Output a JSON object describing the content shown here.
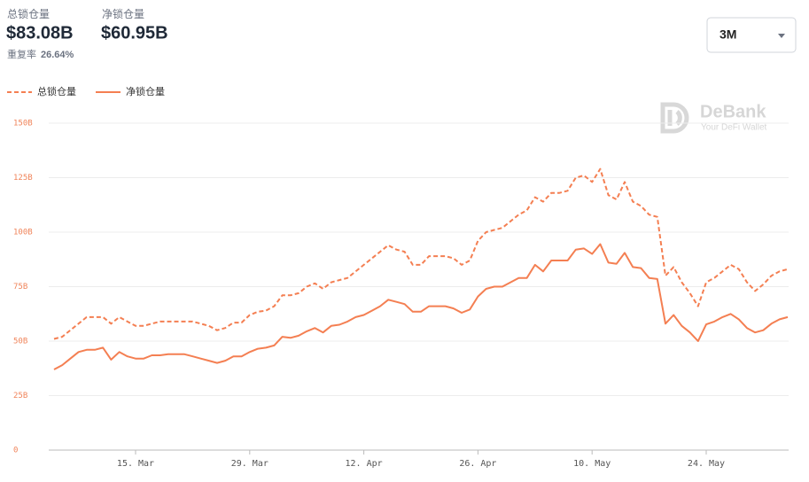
{
  "header": {
    "total_label": "总锁仓量",
    "total_value": "$83.08B",
    "net_label": "净锁仓量",
    "net_value": "$60.95B",
    "ratio_label": "重复率",
    "ratio_value": "26.64%"
  },
  "dropdown": "3M",
  "watermark": {
    "brand": "DeBank",
    "tagline": "Your DeFi Wallet"
  },
  "chart_data": {
    "type": "line",
    "categories": [
      null,
      null,
      null,
      null,
      null,
      null,
      null,
      null,
      null,
      null,
      "15. Mar",
      null,
      null,
      null,
      null,
      null,
      null,
      null,
      null,
      null,
      null,
      null,
      null,
      null,
      "29. Mar",
      null,
      null,
      null,
      null,
      null,
      null,
      null,
      null,
      null,
      null,
      null,
      null,
      null,
      "12. Apr",
      null,
      null,
      null,
      null,
      null,
      null,
      null,
      null,
      null,
      null,
      null,
      null,
      null,
      "26. Apr",
      null,
      null,
      null,
      null,
      null,
      null,
      null,
      null,
      null,
      null,
      null,
      null,
      null,
      "10. May",
      null,
      null,
      null,
      null,
      null,
      null,
      null,
      null,
      null,
      null,
      null,
      null,
      null,
      "24. May",
      null,
      null,
      null,
      null,
      null,
      null,
      null,
      null,
      null,
      null
    ],
    "series": [
      {
        "name": "总锁仓量",
        "color": "#f47f52",
        "line_style": "dashed",
        "values": [
          51,
          52,
          55,
          58,
          61,
          61,
          61,
          58,
          61,
          59,
          57,
          57,
          58,
          59,
          59,
          59,
          59,
          59,
          58,
          57,
          55,
          56,
          58.5,
          58.5,
          62,
          63.5,
          64,
          66,
          71,
          71,
          72,
          75,
          76.5,
          74,
          77,
          78,
          79,
          82,
          85,
          88,
          91,
          94,
          92,
          91,
          85,
          85,
          89,
          89,
          89,
          88,
          85,
          87,
          96,
          100,
          101,
          102,
          105,
          108,
          110,
          116,
          114,
          118,
          118,
          119,
          125,
          126,
          123,
          129,
          117,
          115,
          123,
          114,
          112,
          108,
          107,
          80,
          84,
          77,
          72,
          66,
          77,
          79,
          82,
          85,
          83,
          77,
          73,
          76,
          80,
          82,
          83
        ]
      },
      {
        "name": "净锁仓量",
        "color": "#f47f52",
        "line_style": "solid",
        "values": [
          37,
          39,
          42,
          45,
          46,
          46,
          47,
          41.5,
          45,
          43,
          42,
          42,
          43.5,
          43.5,
          44,
          44,
          44,
          43,
          42,
          41,
          40,
          41,
          43,
          43,
          45,
          46.5,
          47,
          48,
          52,
          51.5,
          52.5,
          54.5,
          56,
          54,
          57,
          57.5,
          59,
          61,
          62,
          64,
          66,
          69,
          68,
          67,
          63.5,
          63.5,
          66,
          66,
          66,
          65,
          63,
          64.5,
          70.5,
          74,
          75,
          75,
          77,
          79,
          79,
          85,
          82,
          87,
          87,
          87,
          92,
          92.5,
          90,
          94.5,
          86,
          85.5,
          90.5,
          84,
          83.5,
          79,
          78.5,
          58,
          62,
          57,
          54,
          50,
          57.7,
          59,
          61,
          62.5,
          60,
          56,
          54,
          55,
          58,
          60,
          61
        ]
      }
    ],
    "ylim": [
      0,
      150
    ],
    "yticks": [
      0,
      {
        "value": 25,
        "label": "25B"
      },
      {
        "value": 50,
        "label": "50B"
      },
      {
        "value": 75,
        "label": "75B"
      },
      {
        "value": 100,
        "label": "100B"
      },
      {
        "value": 125,
        "label": "125B"
      },
      {
        "value": 150,
        "label": "150B"
      }
    ],
    "grid": true
  }
}
